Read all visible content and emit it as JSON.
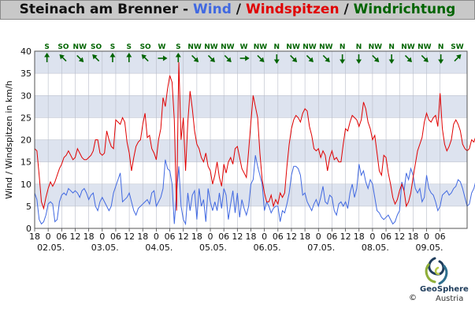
{
  "title": {
    "station": "Steinach am Brenner - ",
    "wind": "Wind",
    "sep1": " / ",
    "gusts": "Windspitzen",
    "sep2": " / ",
    "direction": "Windrichtung"
  },
  "logo": {
    "name": "GeoSphere",
    "sub": "Austria",
    "copyright": "©"
  },
  "colors": {
    "wind": "#4169e1",
    "gusts": "#e00000",
    "direction": "#006400",
    "band": "#dde3ef",
    "title_bg": "#c8c8c8"
  },
  "chart_data": {
    "type": "line",
    "ylabel": "Wind / Windspitzen in km/h",
    "ylim": [
      0,
      40
    ],
    "yticks": [
      0,
      5,
      10,
      15,
      20,
      25,
      30,
      35,
      40
    ],
    "x_range_hours": [
      -6,
      186
    ],
    "xtick_labels": [
      "18",
      "0",
      "06",
      "12",
      "18",
      "0",
      "06",
      "12",
      "18",
      "0",
      "06",
      "12",
      "18",
      "0",
      "06",
      "12",
      "18",
      "0",
      "06",
      "12",
      "18",
      "0",
      "06",
      "12",
      "18",
      "0",
      "06",
      "12",
      "18",
      "0",
      "06"
    ],
    "date_labels": [
      "02.05.",
      "03.05.",
      "04.05.",
      "05.05.",
      "06.05.",
      "07.05.",
      "08.05.",
      "09.05."
    ],
    "grid": true,
    "direction_labels": [
      "S",
      "SO",
      "NW",
      "SO",
      "S",
      "S",
      "SO",
      "W",
      "S",
      "NW",
      "NW",
      "NW",
      "W",
      "NW",
      "N",
      "NW",
      "NW",
      "NW",
      "N",
      "N",
      "NW",
      "N",
      "NW",
      "NW",
      "N",
      "SW"
    ],
    "direction_angles": [
      180,
      135,
      315,
      135,
      180,
      180,
      135,
      270,
      180,
      315,
      315,
      315,
      270,
      315,
      0,
      315,
      315,
      315,
      0,
      0,
      315,
      0,
      315,
      315,
      0,
      225
    ],
    "gusts": [
      18,
      17.5,
      12,
      6,
      4.5,
      7,
      9,
      10.5,
      9.5,
      10.5,
      12,
      13.5,
      14.5,
      16,
      16.5,
      17.5,
      16.5,
      15.5,
      16,
      18,
      17,
      16,
      15.5,
      15.5,
      16,
      16.5,
      17.5,
      20,
      20,
      17,
      16.5,
      17,
      22,
      20,
      18.5,
      18,
      24.5,
      24,
      23.5,
      25,
      24,
      19.5,
      17,
      13,
      16,
      18.5,
      19.5,
      20,
      23.5,
      26,
      20.5,
      21,
      18,
      17,
      15.5,
      20,
      22.5,
      29.5,
      27.5,
      31.5,
      34.5,
      33,
      24.5,
      4,
      37.5,
      20,
      25,
      13,
      24,
      31,
      27,
      22,
      19,
      18,
      16,
      15,
      17,
      14,
      13,
      10,
      12,
      15,
      11.5,
      9.5,
      14.5,
      12.5,
      15,
      16,
      14.5,
      18,
      18.5,
      16,
      13.5,
      12.5,
      11.5,
      17.5,
      24,
      30,
      27.5,
      25,
      17,
      11,
      8,
      6,
      6,
      7.5,
      5,
      6.5,
      5.5,
      8,
      7,
      8,
      14,
      19,
      22.5,
      24.5,
      25.5,
      25,
      24,
      26,
      27,
      26.5,
      23,
      21,
      18,
      17.5,
      18,
      16,
      17.5,
      16.5,
      13,
      16,
      17.5,
      15.5,
      16,
      15,
      15,
      19,
      22.5,
      22,
      24,
      25.5,
      25,
      24.5,
      23,
      24.5,
      28.5,
      27,
      24,
      22.5,
      20,
      21,
      17,
      13,
      12,
      16.5,
      16,
      12.5,
      10,
      7,
      5.5,
      6.5,
      8.5,
      10,
      8.5,
      5,
      6,
      8,
      11.5,
      14.5,
      17.5,
      19,
      20.5,
      24,
      26,
      24.5,
      24,
      25,
      25.5,
      23,
      30.5,
      22.5,
      19,
      17.5,
      18.5,
      20,
      23.5,
      24.5,
      23.5,
      22,
      19,
      18,
      17.5,
      18,
      20,
      19.5,
      21,
      16,
      13.5,
      11.5,
      13,
      16,
      19.5,
      22,
      24.5,
      25.5,
      26.5,
      32,
      27,
      28.5,
      25.5,
      22,
      19,
      16.5,
      15,
      14.5,
      13.5,
      12,
      11,
      10,
      9,
      7,
      6,
      4.5,
      4,
      5,
      7
    ],
    "wind": [
      8,
      6.5,
      2,
      1,
      1.5,
      3,
      5.5,
      6,
      5.5,
      1.5,
      2,
      6,
      7.5,
      8,
      7.5,
      9,
      8.5,
      8,
      8.5,
      8,
      7,
      8.5,
      9,
      8,
      6.5,
      7.5,
      8,
      5,
      4,
      6,
      7,
      6,
      5,
      4,
      5,
      8,
      9.5,
      11,
      12.5,
      6,
      6.5,
      7,
      8,
      6,
      4,
      3,
      4.5,
      5,
      5.5,
      6,
      6.5,
      5.5,
      8,
      8.5,
      5,
      6,
      7,
      9,
      15.5,
      13.5,
      13,
      10,
      1,
      8,
      14,
      5,
      2,
      1,
      8,
      4,
      7.5,
      8.5,
      2,
      9,
      5,
      6.5,
      1.5,
      9,
      6,
      4,
      6,
      4,
      8,
      4.5,
      9,
      7.5,
      2,
      5.5,
      8.5,
      3.5,
      8,
      2.5,
      6.5,
      4.5,
      3,
      5,
      10,
      11,
      16.5,
      14,
      12,
      10,
      4,
      6,
      5,
      3.5,
      4.5,
      5,
      5,
      1.5,
      4,
      3.5,
      5.5,
      8,
      12,
      14,
      14,
      13.5,
      12,
      7.5,
      8,
      6,
      5,
      4,
      5.5,
      6.5,
      5,
      7,
      9.5,
      6,
      5.5,
      7.5,
      7,
      4,
      3,
      5.5,
      6,
      5,
      6,
      4.5,
      8,
      10,
      7,
      9,
      14.5,
      12,
      13,
      10.5,
      9,
      11,
      10,
      7,
      4,
      3.5,
      2.5,
      2,
      2.5,
      3,
      2,
      1,
      1.5,
      3,
      4,
      10.5,
      8.5,
      12.5,
      11,
      13.5,
      12,
      9,
      8,
      9,
      6,
      7,
      12,
      9,
      8,
      7.5,
      6,
      4,
      5,
      7.5,
      8,
      8.5,
      7.5,
      8,
      9,
      9.5,
      11,
      10.5,
      9,
      7,
      5,
      5.5,
      8,
      9,
      11,
      13,
      12.5,
      11,
      9,
      8,
      7,
      6,
      5.5,
      4,
      3,
      2,
      1.5,
      2,
      1.5,
      2,
      1.5,
      2.5,
      3
    ]
  }
}
